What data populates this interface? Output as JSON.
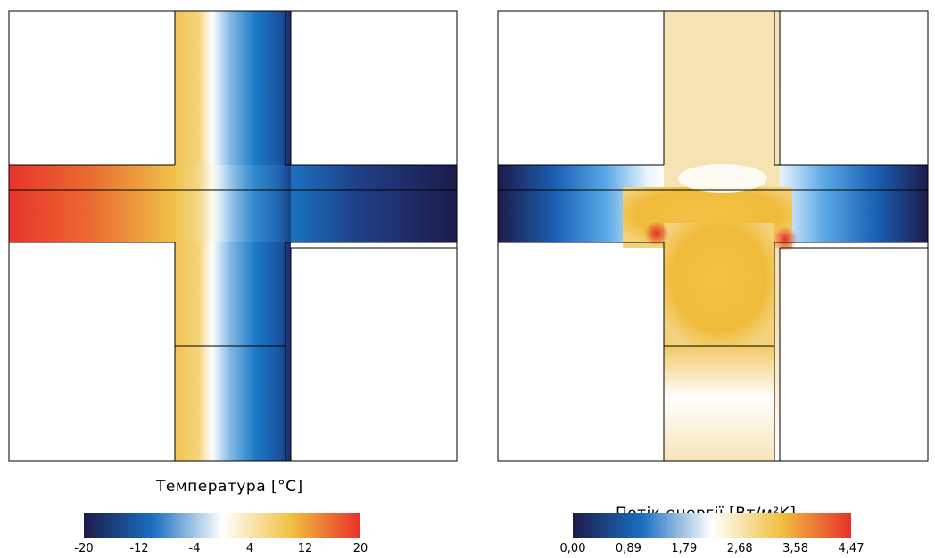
{
  "left_panel": {
    "legend_title": "Температура [°C]",
    "ticks": [
      "-20",
      "-12",
      "-4",
      "4",
      "12",
      "20"
    ],
    "colors": [
      "#1d1b4a",
      "#1a6fc0",
      "#ffffff",
      "#f0c040",
      "#e8302a"
    ]
  },
  "right_panel": {
    "legend_title": "Потік енергії [Вт/м²K]",
    "ticks": [
      "0,00",
      "0,89",
      "1,79",
      "2,68",
      "3,58",
      "4,47"
    ],
    "colors": [
      "#1d1b4a",
      "#1a6fc0",
      "#ffffff",
      "#f0c040",
      "#e8302a"
    ]
  }
}
